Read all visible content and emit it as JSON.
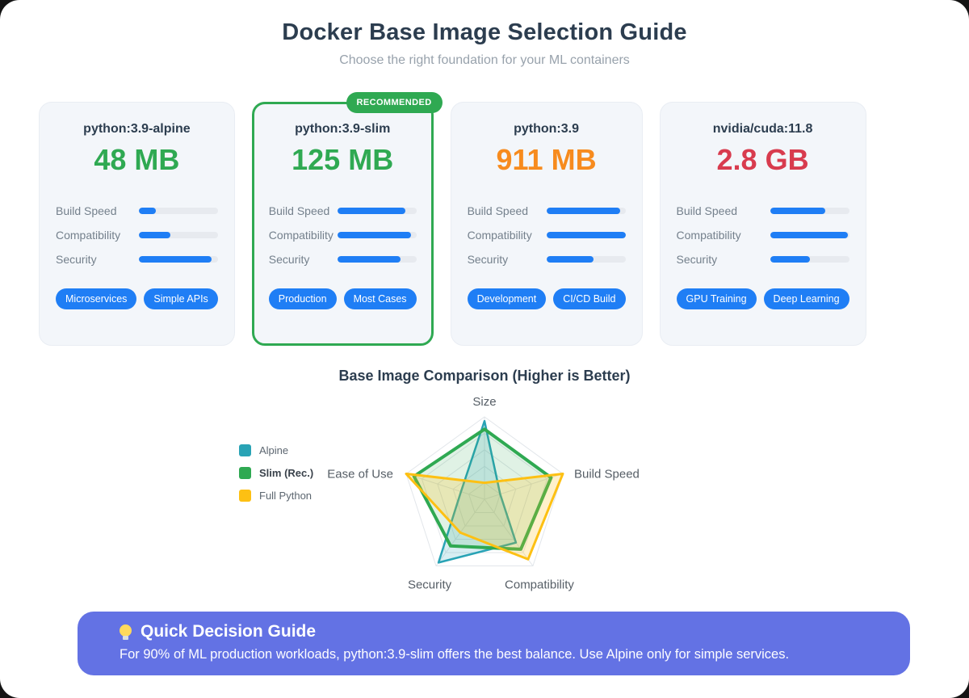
{
  "page": {
    "title": "Docker Base Image Selection Guide",
    "subtitle": "Choose the right foundation for your ML containers"
  },
  "colors": {
    "accent_blue": "#1f7ef5",
    "green": "#2fa952",
    "orange": "#f78b1e",
    "red": "#d83b4e",
    "navy": "#2c3d4f",
    "card_bg": "#f3f6fa",
    "banner": "#6372e4"
  },
  "cards": [
    {
      "name": "python:3.9-alpine",
      "size": "48 MB",
      "size_color": "#2fa952",
      "metrics": [
        {
          "label": "Build Speed",
          "value": 22
        },
        {
          "label": "Compatibility",
          "value": 40
        },
        {
          "label": "Security",
          "value": 92
        }
      ],
      "tags": [
        "Microservices",
        "Simple APIs"
      ]
    },
    {
      "name": "python:3.9-slim",
      "size": "125 MB",
      "size_color": "#2fa952",
      "badge": "RECOMMENDED",
      "metrics": [
        {
          "label": "Build Speed",
          "value": 86
        },
        {
          "label": "Compatibility",
          "value": 93
        },
        {
          "label": "Security",
          "value": 80
        }
      ],
      "tags": [
        "Production",
        "Most Cases"
      ]
    },
    {
      "name": "python:3.9",
      "size": "911 MB",
      "size_color": "#f78b1e",
      "metrics": [
        {
          "label": "Build Speed",
          "value": 93
        },
        {
          "label": "Compatibility",
          "value": 100
        },
        {
          "label": "Security",
          "value": 60
        }
      ],
      "tags": [
        "Development",
        "CI/CD Build"
      ]
    },
    {
      "name": "nvidia/cuda:11.8",
      "size": "2.8 GB",
      "size_color": "#d83b4e",
      "metrics": [
        {
          "label": "Build Speed",
          "value": 70
        },
        {
          "label": "Compatibility",
          "value": 98
        },
        {
          "label": "Security",
          "value": 50
        }
      ],
      "tags": [
        "GPU Training",
        "Deep Learning"
      ]
    }
  ],
  "chart_data": {
    "type": "radar",
    "title": "Base Image Comparison (Higher is Better)",
    "axes": [
      "Size",
      "Build Speed",
      "Compatibility",
      "Security",
      "Ease of Use"
    ],
    "max": 10,
    "grid_levels": 5,
    "grid_color": "#e2e6ea",
    "legend_position": "left",
    "series": [
      {
        "name": "Alpine",
        "color": "#29a3b5",
        "fill": "rgba(41,163,181,0.18)",
        "stroke_width": 2.5,
        "bold": false,
        "values": [
          9.5,
          2,
          6.5,
          9.5,
          3
        ]
      },
      {
        "name": "Slim (Rec.)",
        "color": "#2fa952",
        "fill": "rgba(47,169,82,0.15)",
        "stroke_width": 4,
        "bold": true,
        "values": [
          8.5,
          8.5,
          7.5,
          7,
          9
        ]
      },
      {
        "name": "Full Python",
        "color": "#fdc013",
        "fill": "rgba(253,192,19,0.22)",
        "stroke_width": 3,
        "bold": false,
        "values": [
          2,
          10,
          9,
          5,
          10
        ]
      }
    ]
  },
  "footer": {
    "icon": "lightbulb-icon",
    "title": "Quick Decision Guide",
    "text": "For 90% of ML production workloads, python:3.9-slim offers the best balance. Use Alpine only for simple services."
  }
}
